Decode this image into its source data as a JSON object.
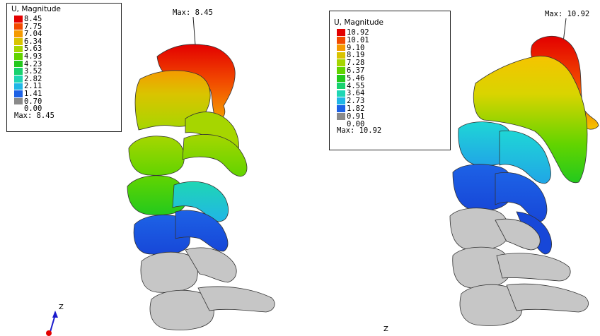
{
  "left_panel": {
    "legend_title": "U, Magnitude",
    "legend_values": [
      "8.45",
      "7.75",
      "7.04",
      "6.34",
      "5.63",
      "4.93",
      "4.23",
      "3.52",
      "2.82",
      "2.11",
      "1.41",
      "0.70",
      "0.00"
    ],
    "legend_footer": "Max: 8.45",
    "max_marker": "Max: 8.45"
  },
  "right_panel": {
    "legend_title": "U, Magnitude",
    "legend_values": [
      "10.92",
      "10.01",
      "9.10",
      "8.19",
      "7.28",
      "6.37",
      "5.46",
      "4.55",
      "3.64",
      "2.73",
      "1.82",
      "0.91",
      "0.00"
    ],
    "legend_footer": "Max: 10.92",
    "max_marker": "Max: 10.92"
  },
  "colormap": [
    "#e30000",
    "#f24a00",
    "#f59a00",
    "#d9c400",
    "#a6d600",
    "#62d400",
    "#23c91d",
    "#18d26f",
    "#1fd6b4",
    "#20b6e6",
    "#1d62e6",
    "#8a8a8a"
  ],
  "axes": {
    "z_label_left": "Z",
    "z_label_right": "Z"
  }
}
